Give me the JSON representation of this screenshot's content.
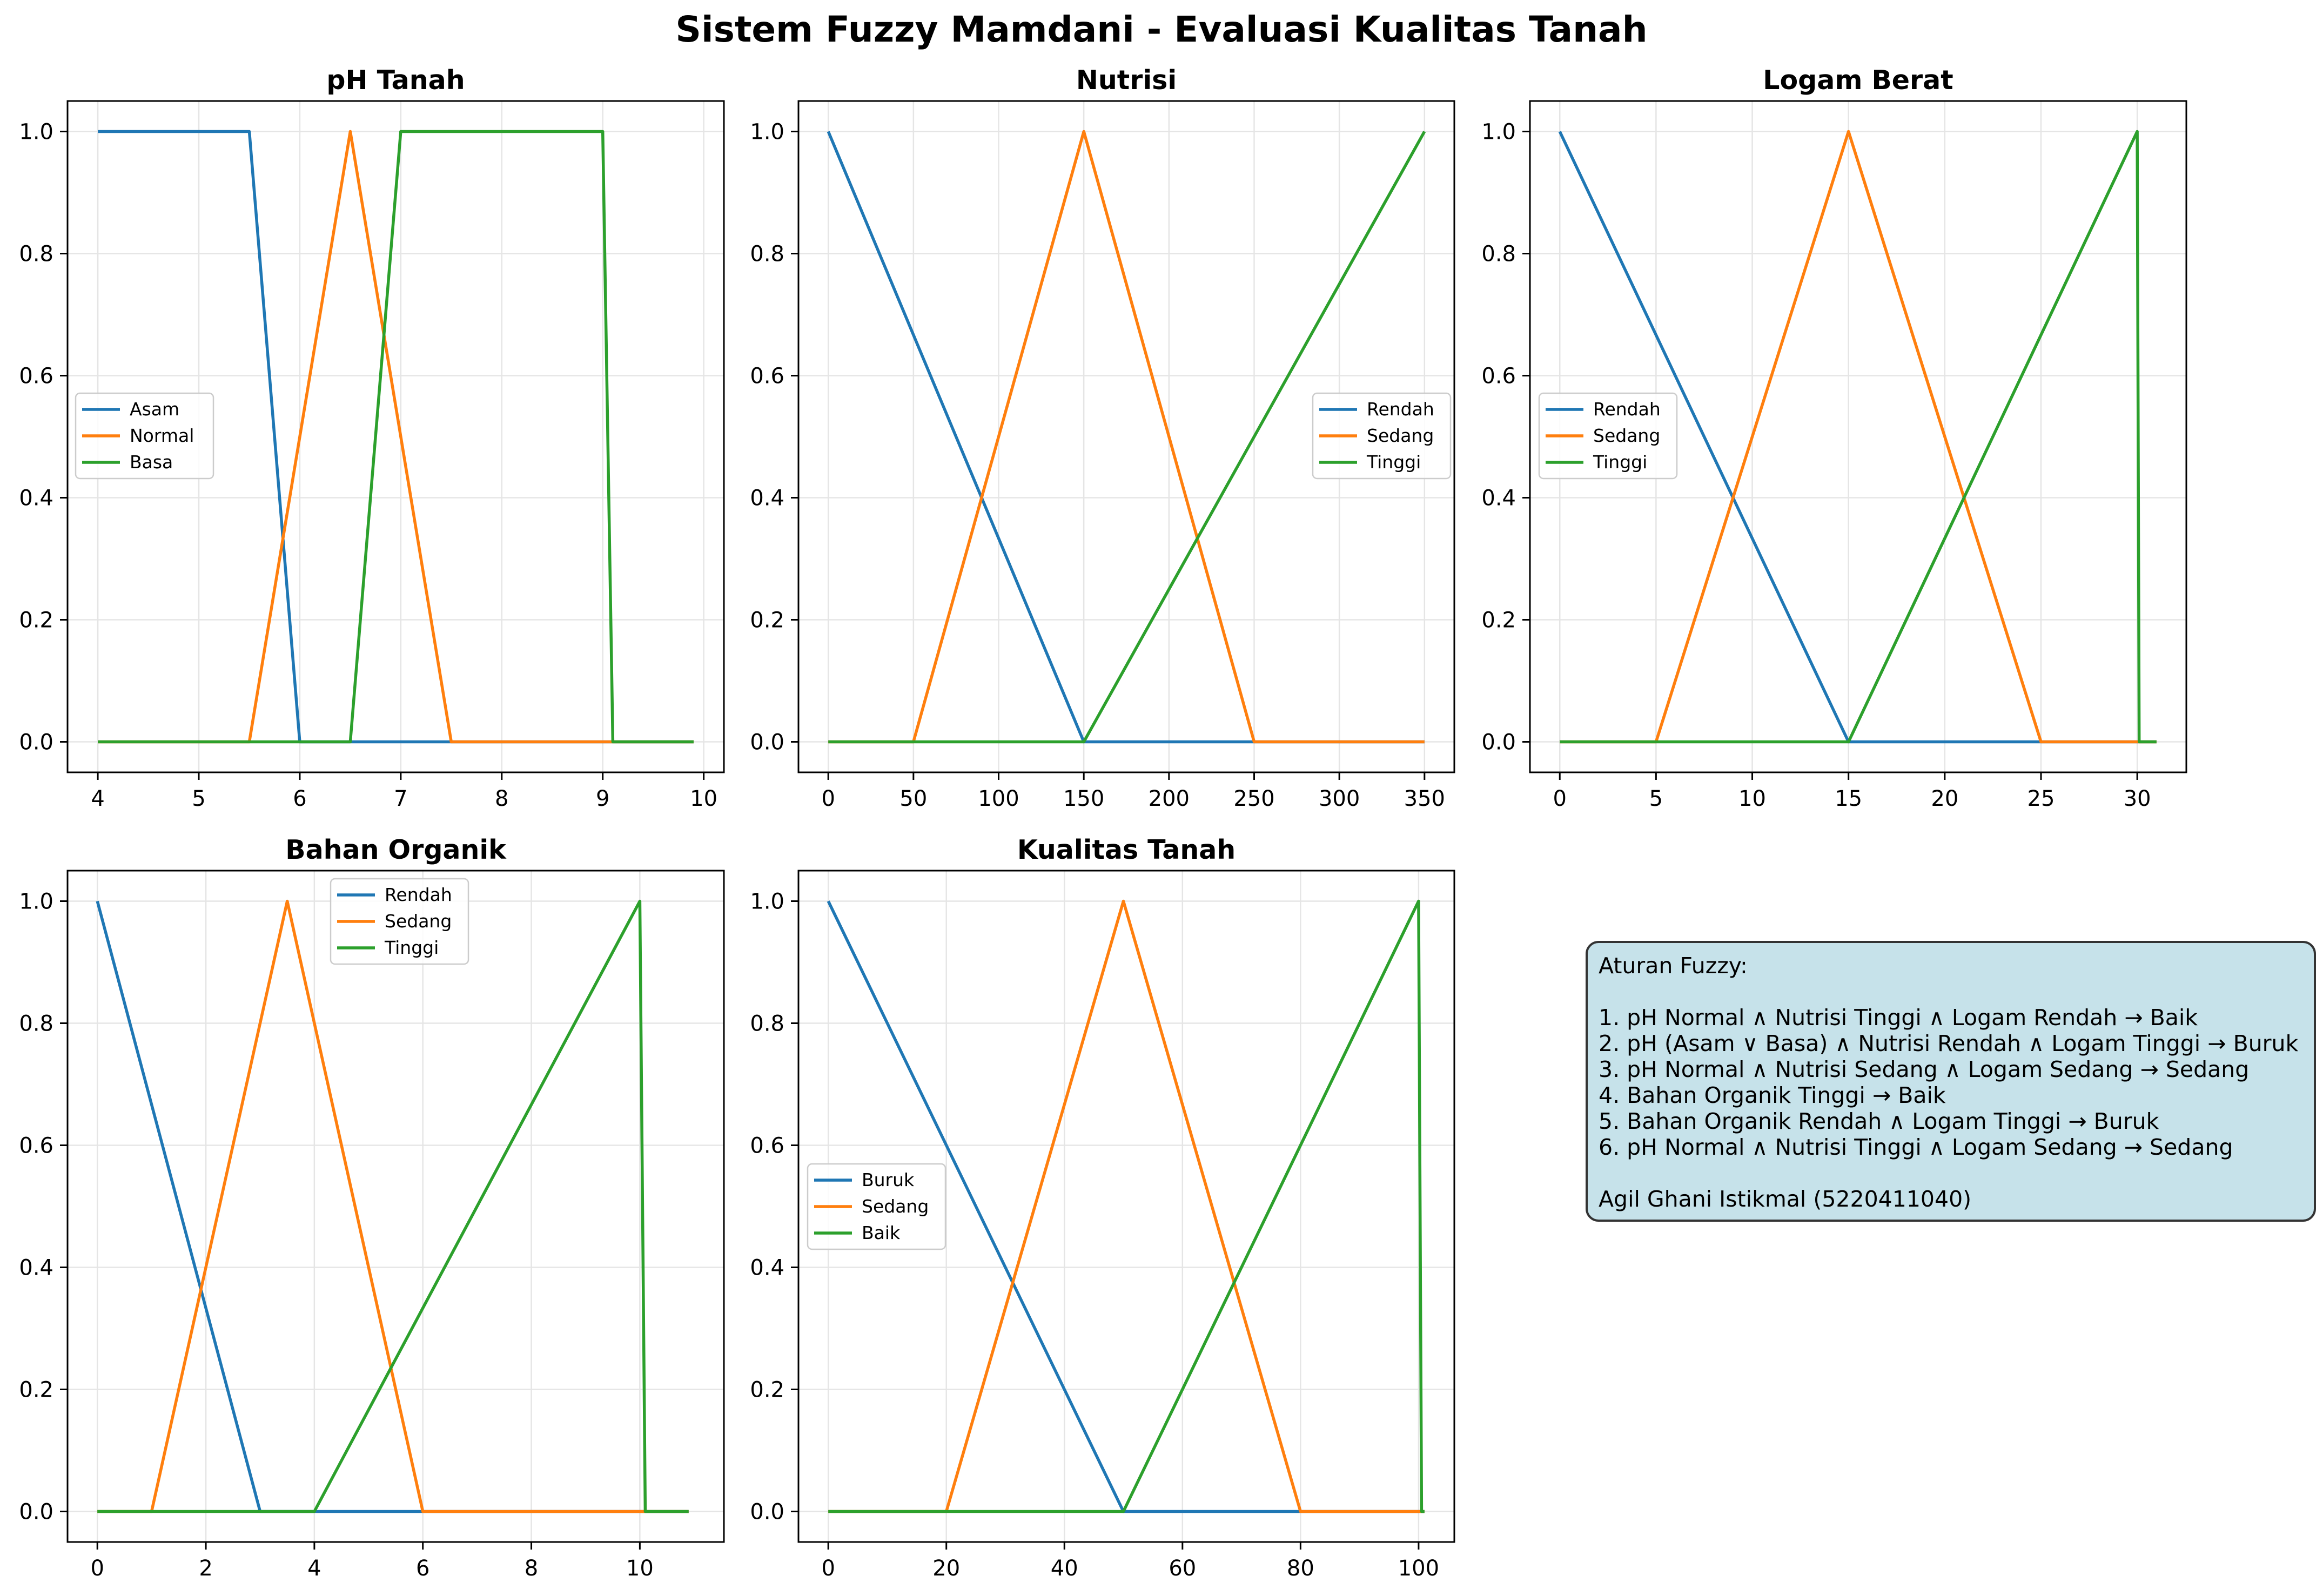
{
  "figure": {
    "title": "Sistem Fuzzy Mamdani - Evaluasi Kualitas Tanah"
  },
  "colors": {
    "series": [
      "#1f77b4",
      "#ff7f0e",
      "#2ca02c"
    ],
    "rules_box_bg": "#c6e2ea",
    "grid": "#e5e5e5"
  },
  "chart_data": [
    {
      "type": "line",
      "title": "pH Tanah",
      "xlim": [
        3.7,
        10.2
      ],
      "ylim": [
        -0.05,
        1.05
      ],
      "xticks": [
        4,
        5,
        6,
        7,
        8,
        9,
        10
      ],
      "yticks": [
        0.0,
        0.2,
        0.4,
        0.6,
        0.8,
        1.0
      ],
      "grid": true,
      "legend_position": "center-left",
      "series": [
        {
          "name": "Asam",
          "x": [
            4,
            5.5,
            6,
            9.9
          ],
          "y": [
            1,
            1,
            0,
            0
          ]
        },
        {
          "name": "Normal",
          "x": [
            4,
            5.5,
            6.5,
            7.5,
            9.9
          ],
          "y": [
            0,
            0,
            1,
            0,
            0
          ]
        },
        {
          "name": "Basa",
          "x": [
            4,
            6.5,
            7,
            9,
            9.1,
            9.9
          ],
          "y": [
            0,
            0,
            1,
            1,
            0,
            0
          ]
        }
      ]
    },
    {
      "type": "line",
      "title": "Nutrisi",
      "xlim": [
        -17.5,
        367.5
      ],
      "ylim": [
        -0.05,
        1.05
      ],
      "xticks": [
        0,
        50,
        100,
        150,
        200,
        250,
        300,
        350
      ],
      "yticks": [
        0.0,
        0.2,
        0.4,
        0.6,
        0.8,
        1.0
      ],
      "grid": true,
      "legend_position": "center-right",
      "series": [
        {
          "name": "Rendah",
          "x": [
            0,
            150,
            350
          ],
          "y": [
            1,
            0,
            0
          ]
        },
        {
          "name": "Sedang",
          "x": [
            0,
            50,
            150,
            250,
            350
          ],
          "y": [
            0,
            0,
            1,
            0,
            0
          ]
        },
        {
          "name": "Tinggi",
          "x": [
            0,
            150,
            350
          ],
          "y": [
            0,
            0,
            1
          ]
        }
      ]
    },
    {
      "type": "line",
      "title": "Logam Berat",
      "xlim": [
        -1.55,
        32.55
      ],
      "ylim": [
        -0.05,
        1.05
      ],
      "xticks": [
        0,
        5,
        10,
        15,
        20,
        25,
        30
      ],
      "yticks": [
        0.0,
        0.2,
        0.4,
        0.6,
        0.8,
        1.0
      ],
      "grid": true,
      "legend_position": "center-left",
      "series": [
        {
          "name": "Rendah",
          "x": [
            0,
            15,
            31
          ],
          "y": [
            1,
            0,
            0
          ]
        },
        {
          "name": "Sedang",
          "x": [
            0,
            5,
            15,
            25,
            31
          ],
          "y": [
            0,
            0,
            1,
            0,
            0
          ]
        },
        {
          "name": "Tinggi",
          "x": [
            0,
            15,
            30,
            30.1,
            31
          ],
          "y": [
            0,
            0,
            1,
            0,
            0
          ]
        }
      ]
    },
    {
      "type": "line",
      "title": "Bahan Organik",
      "xlim": [
        -0.55,
        11.55
      ],
      "ylim": [
        -0.05,
        1.05
      ],
      "xticks": [
        0,
        2,
        4,
        6,
        8,
        10
      ],
      "yticks": [
        0.0,
        0.2,
        0.4,
        0.6,
        0.8,
        1.0
      ],
      "grid": true,
      "legend_position": "upper-center",
      "series": [
        {
          "name": "Rendah",
          "x": [
            0,
            3,
            10.9
          ],
          "y": [
            1,
            0,
            0
          ]
        },
        {
          "name": "Sedang",
          "x": [
            0,
            1,
            3.5,
            6,
            10.9
          ],
          "y": [
            0,
            0,
            1,
            0,
            0
          ]
        },
        {
          "name": "Tinggi",
          "x": [
            0,
            4,
            10,
            10.1,
            10.9
          ],
          "y": [
            0,
            0,
            1,
            0,
            0
          ]
        }
      ]
    },
    {
      "type": "line",
      "title": "Kualitas Tanah",
      "xlim": [
        -5.05,
        106.05
      ],
      "ylim": [
        -0.05,
        1.05
      ],
      "xticks": [
        0,
        20,
        40,
        60,
        80,
        100
      ],
      "yticks": [
        0.0,
        0.2,
        0.4,
        0.6,
        0.8,
        1.0
      ],
      "grid": true,
      "legend_position": "center-left",
      "series": [
        {
          "name": "Buruk",
          "x": [
            0,
            50,
            101
          ],
          "y": [
            1,
            0,
            0
          ]
        },
        {
          "name": "Sedang",
          "x": [
            0,
            20,
            50,
            80,
            101
          ],
          "y": [
            0,
            0,
            1,
            0,
            0
          ]
        },
        {
          "name": "Baik",
          "x": [
            0,
            50,
            100,
            100.5,
            101
          ],
          "y": [
            0,
            0,
            1,
            0,
            0
          ]
        }
      ]
    }
  ],
  "rules_box": {
    "heading": "Aturan Fuzzy:",
    "rules": [
      "1. pH Normal ∧ Nutrisi Tinggi ∧ Logam Rendah → Baik",
      "2. pH (Asam ∨ Basa) ∧ Nutrisi Rendah ∧ Logam Tinggi → Buruk",
      "3. pH Normal ∧ Nutrisi Sedang ∧ Logam Sedang → Sedang",
      "4. Bahan Organik Tinggi → Baik",
      "5. Bahan Organik Rendah ∧ Logam Tinggi → Buruk",
      "6. pH Normal ∧ Nutrisi Tinggi ∧ Logam Sedang → Sedang"
    ],
    "author": "Agil Ghani Istikmal (5220411040)"
  }
}
